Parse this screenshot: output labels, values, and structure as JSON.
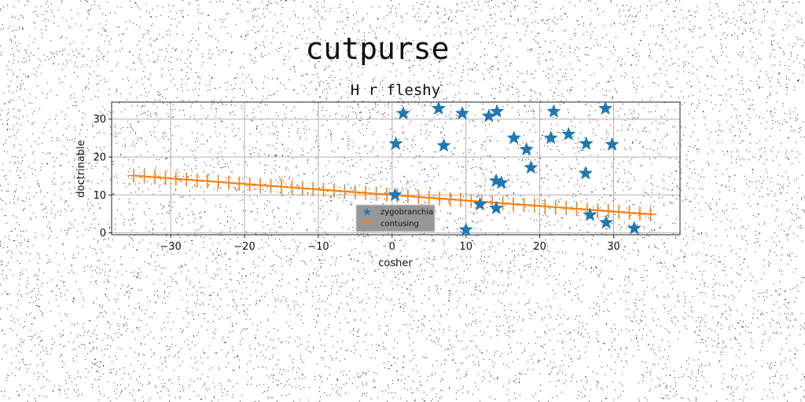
{
  "suptitle": "cutpurse",
  "chart_data": {
    "type": "scatter",
    "title": "H r fleshy",
    "xlabel": "cosher",
    "ylabel": "doctrinable",
    "xlim": [
      -38,
      39
    ],
    "ylim": [
      -0.5,
      34.5
    ],
    "xticks": [
      -30,
      -20,
      -10,
      0,
      10,
      20,
      30
    ],
    "yticks": [
      0,
      10,
      20,
      30
    ],
    "grid": true,
    "legend_position": "bottom-center",
    "series": [
      {
        "name": "zygobranchia",
        "type": "scatter",
        "marker": "star",
        "color": "#1f77b4",
        "points": [
          [
            0.5,
            23.5
          ],
          [
            1.5,
            31.5
          ],
          [
            6.3,
            32.8
          ],
          [
            7.0,
            23.0
          ],
          [
            9.5,
            31.5
          ],
          [
            13.1,
            30.8
          ],
          [
            14.2,
            32.0
          ],
          [
            16.5,
            25.0
          ],
          [
            18.2,
            22.0
          ],
          [
            18.8,
            17.2
          ],
          [
            21.5,
            25.0
          ],
          [
            21.9,
            32.0
          ],
          [
            23.9,
            26.0
          ],
          [
            26.3,
            23.5
          ],
          [
            26.2,
            15.7
          ],
          [
            28.9,
            32.8
          ],
          [
            29.8,
            23.3
          ],
          [
            14.1,
            13.7
          ],
          [
            14.8,
            13.2
          ],
          [
            0.4,
            10.0
          ],
          [
            11.9,
            7.5
          ],
          [
            14.1,
            6.5
          ],
          [
            26.8,
            4.7
          ],
          [
            29.0,
            2.7
          ],
          [
            10.0,
            0.8
          ],
          [
            32.8,
            1.2
          ]
        ]
      },
      {
        "name": "contusing",
        "type": "line",
        "marker": "plus",
        "color": "#ff7f0e",
        "x_start": -35,
        "x_end": 35,
        "y_start": 15.1,
        "y_end": 4.9,
        "n_points": 50
      }
    ]
  }
}
